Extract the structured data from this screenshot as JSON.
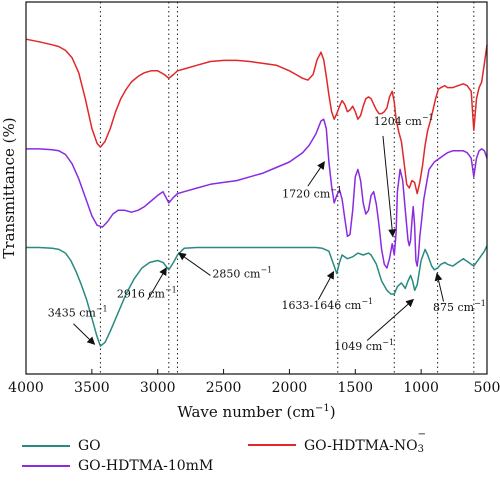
{
  "chart_data": {
    "type": "line",
    "xlabel": "Wave number (cm",
    "xlabel_sup": "−1",
    "xlabel_end": ")",
    "ylabel": "Transmittance (%)",
    "xlim": [
      4000,
      500
    ],
    "xticks": [
      4000,
      3500,
      3000,
      2500,
      2000,
      1500,
      1000,
      500
    ],
    "ylim": [
      0,
      100
    ],
    "grid": false,
    "legend_position": "bottom",
    "reference_lines": [
      3435,
      2916,
      2850,
      1633,
      1204,
      875,
      600
    ],
    "series": [
      {
        "name": "GO",
        "color": "#2a8a80",
        "x": [
          4000,
          3900,
          3800,
          3750,
          3700,
          3660,
          3620,
          3580,
          3540,
          3500,
          3460,
          3435,
          3400,
          3360,
          3300,
          3240,
          3180,
          3120,
          3060,
          3000,
          2960,
          2916,
          2880,
          2850,
          2800,
          2700,
          2600,
          2400,
          2200,
          2000,
          1900,
          1800,
          1750,
          1700,
          1660,
          1640,
          1620,
          1600,
          1560,
          1520,
          1480,
          1440,
          1400,
          1380,
          1340,
          1300,
          1260,
          1230,
          1204,
          1180,
          1150,
          1120,
          1100,
          1080,
          1065,
          1049,
          1030,
          1000,
          970,
          950,
          920,
          900,
          875,
          850,
          820,
          800,
          760,
          720,
          680,
          640,
          600,
          560,
          520,
          500
        ],
        "y": [
          34.0,
          34.0,
          33.8,
          33.5,
          32.5,
          30.5,
          27.5,
          24.0,
          20.0,
          15.0,
          10.0,
          7.5,
          8.5,
          11.5,
          16.5,
          21.5,
          25.5,
          28.5,
          30.0,
          30.5,
          30.0,
          28.0,
          30.0,
          32.0,
          33.8,
          34.0,
          34.0,
          34.0,
          34.0,
          34.0,
          34.0,
          34.0,
          33.8,
          33.0,
          29.0,
          27.0,
          30.0,
          32.0,
          31.0,
          31.5,
          32.5,
          32.0,
          32.5,
          32.0,
          29.5,
          25.0,
          22.5,
          21.5,
          21.5,
          23.5,
          24.5,
          23.0,
          25.0,
          26.5,
          25.0,
          22.5,
          24.0,
          30.5,
          33.5,
          32.0,
          29.0,
          28.0,
          28.5,
          29.5,
          30.0,
          29.5,
          29.0,
          30.0,
          31.0,
          30.0,
          29.0,
          31.0,
          33.0,
          34.5
        ]
      },
      {
        "name": "GO-HDTMA-10mM",
        "color": "#8a2be2",
        "x": [
          4000,
          3900,
          3800,
          3750,
          3700,
          3650,
          3600,
          3550,
          3500,
          3460,
          3420,
          3380,
          3340,
          3300,
          3250,
          3200,
          3150,
          3100,
          3050,
          3000,
          2960,
          2930,
          2916,
          2880,
          2850,
          2800,
          2700,
          2600,
          2500,
          2400,
          2300,
          2200,
          2100,
          2000,
          1900,
          1850,
          1800,
          1760,
          1740,
          1720,
          1700,
          1680,
          1660,
          1640,
          1620,
          1600,
          1580,
          1560,
          1540,
          1520,
          1500,
          1480,
          1460,
          1440,
          1420,
          1400,
          1380,
          1360,
          1340,
          1320,
          1300,
          1280,
          1260,
          1240,
          1220,
          1204,
          1190,
          1180,
          1160,
          1140,
          1120,
          1100,
          1090,
          1080,
          1070,
          1060,
          1050,
          1040,
          1030,
          1020,
          1010,
          1000,
          980,
          960,
          940,
          920,
          900,
          880,
          860,
          840,
          820,
          800,
          760,
          720,
          680,
          650,
          620,
          600,
          580,
          560,
          540,
          520,
          500
        ],
        "y": [
          60.5,
          60.5,
          60.3,
          60.0,
          59.0,
          56.5,
          52.5,
          47.5,
          42.5,
          40.0,
          39.5,
          41.0,
          43.0,
          44.0,
          44.0,
          43.5,
          44.0,
          45.0,
          46.5,
          48.0,
          49.0,
          47.0,
          46.0,
          47.5,
          48.5,
          49.0,
          50.0,
          51.0,
          51.5,
          52.0,
          53.0,
          54.0,
          55.5,
          57.0,
          59.5,
          61.5,
          64.5,
          68.0,
          68.5,
          66.0,
          57.0,
          50.5,
          46.0,
          48.0,
          49.5,
          47.0,
          42.0,
          37.0,
          37.5,
          44.0,
          53.0,
          55.0,
          52.0,
          46.0,
          43.0,
          44.0,
          48.0,
          49.0,
          45.5,
          40.0,
          33.5,
          29.5,
          28.5,
          31.0,
          35.0,
          32.0,
          38.0,
          49.0,
          55.0,
          52.0,
          44.0,
          36.0,
          34.5,
          36.0,
          41.0,
          45.0,
          40.0,
          30.5,
          29.0,
          32.0,
          37.0,
          40.0,
          47.0,
          51.0,
          55.0,
          56.0,
          57.0,
          57.5,
          58.0,
          58.5,
          59.0,
          59.5,
          60.0,
          60.0,
          60.0,
          59.5,
          58.0,
          53.0,
          58.0,
          60.0,
          60.5,
          60.0,
          58.0
        ]
      },
      {
        "name": "GO-HDTMA-NO",
        "name_sub": "3",
        "name_sup": "−",
        "color": "#e0282a",
        "x": [
          4000,
          3900,
          3800,
          3750,
          3700,
          3650,
          3600,
          3550,
          3500,
          3460,
          3435,
          3400,
          3360,
          3320,
          3280,
          3240,
          3200,
          3150,
          3100,
          3050,
          3000,
          2950,
          2916,
          2880,
          2850,
          2800,
          2700,
          2600,
          2500,
          2400,
          2300,
          2200,
          2100,
          2000,
          1950,
          1900,
          1860,
          1820,
          1790,
          1760,
          1740,
          1720,
          1700,
          1680,
          1660,
          1640,
          1620,
          1600,
          1580,
          1560,
          1540,
          1520,
          1500,
          1480,
          1460,
          1440,
          1420,
          1400,
          1380,
          1360,
          1340,
          1320,
          1300,
          1280,
          1260,
          1240,
          1220,
          1204,
          1190,
          1170,
          1150,
          1130,
          1110,
          1090,
          1070,
          1050,
          1030,
          1010,
          990,
          970,
          950,
          930,
          910,
          890,
          870,
          850,
          820,
          800,
          760,
          720,
          680,
          650,
          620,
          600,
          580,
          560,
          540,
          520,
          500
        ],
        "y": [
          90.0,
          89.3,
          88.5,
          88.0,
          87.0,
          85.0,
          81.0,
          74.0,
          66.0,
          62.0,
          61.0,
          62.5,
          66.0,
          70.5,
          74.0,
          76.5,
          78.5,
          80.0,
          81.0,
          81.5,
          81.5,
          80.5,
          79.5,
          80.5,
          81.5,
          82.0,
          83.0,
          84.0,
          84.3,
          84.3,
          84.0,
          83.5,
          83.0,
          81.5,
          80.5,
          79.5,
          79.0,
          80.5,
          84.5,
          86.5,
          84.5,
          80.0,
          75.0,
          70.5,
          68.5,
          70.0,
          72.0,
          73.5,
          72.5,
          70.5,
          71.0,
          72.0,
          70.5,
          68.5,
          69.5,
          72.0,
          74.0,
          74.5,
          74.0,
          72.5,
          71.0,
          70.0,
          70.0,
          70.5,
          71.5,
          74.5,
          76.0,
          73.0,
          68.5,
          65.0,
          62.5,
          57.0,
          51.0,
          50.0,
          52.0,
          51.5,
          48.5,
          51.5,
          56.0,
          61.5,
          65.5,
          68.0,
          71.0,
          74.0,
          76.5,
          77.0,
          77.5,
          77.0,
          77.0,
          77.5,
          78.0,
          77.5,
          76.0,
          65.5,
          74.0,
          77.0,
          78.5,
          83.5,
          88.5
        ]
      }
    ],
    "annotations": [
      {
        "text": "3435 cm",
        "sup": "−1",
        "tx": 3835,
        "ty": 15.5,
        "ax": 3480,
        "ay": 8.0,
        "arrow_from_x": 3640,
        "arrow_from_y": 13.5
      },
      {
        "text": "2916 cm",
        "sup": "−1",
        "tx": 3310,
        "ty": 20.5,
        "ax": 2935,
        "ay": 28.5,
        "arrow_from_x": 3075,
        "arrow_from_y": 20.0
      },
      {
        "text": "2850 cm",
        "sup": "−1",
        "tx": 2585,
        "ty": 26.0,
        "ax": 2840,
        "ay": 32.5,
        "arrow_from_x": 2600,
        "arrow_from_y": 26.5
      },
      {
        "text": "1720 cm",
        "sup": "−1",
        "tx": 2055,
        "ty": 47.5,
        "ax": 1735,
        "ay": 57.0,
        "arrow_from_x": 1860,
        "arrow_from_y": 50.5
      },
      {
        "text": "1204 cm",
        "sup": "−1",
        "tx": 1360,
        "ty": 67.0,
        "ax": 1215,
        "ay": 37.0,
        "arrow_from_x": 1290,
        "arrow_from_y": 64.0
      },
      {
        "text": "1633-1646 cm",
        "sup": "−1",
        "tx": 2060,
        "ty": 17.5,
        "ax": 1665,
        "ay": 27.5,
        "arrow_from_x": 1780,
        "arrow_from_y": 20.0
      },
      {
        "text": "1049 cm",
        "sup": "−1",
        "tx": 1660,
        "ty": 6.5,
        "ax": 1060,
        "ay": 20.0,
        "arrow_from_x": 1410,
        "arrow_from_y": 9.0
      },
      {
        "text": "875 cm",
        "sup": "−1",
        "tx": 910,
        "ty": 17.0,
        "ax": 880,
        "ay": 27.0,
        "arrow_from_x": 830,
        "arrow_from_y": 19.5
      }
    ]
  }
}
